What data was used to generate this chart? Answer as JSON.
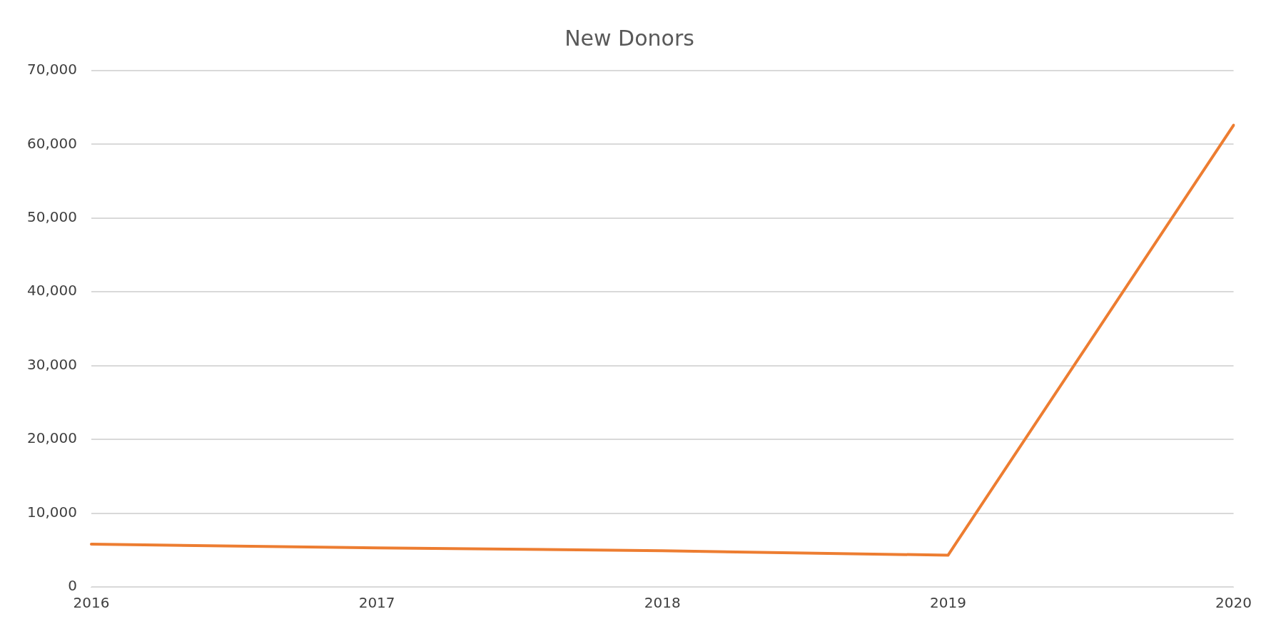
{
  "chart_data": {
    "type": "line",
    "title": "New Donors",
    "categories": [
      "2016",
      "2017",
      "2018",
      "2019",
      "2020"
    ],
    "series": [
      {
        "color": "#ed7d31",
        "values": [
          5800,
          5300,
          4900,
          4300,
          62600
        ]
      }
    ],
    "ylim": [
      0,
      70000
    ],
    "yticks": [
      {
        "value": 0,
        "label": "0"
      },
      {
        "value": 10000,
        "label": "10,000"
      },
      {
        "value": 20000,
        "label": "20,000"
      },
      {
        "value": 30000,
        "label": "30,000"
      },
      {
        "value": 40000,
        "label": "40,000"
      },
      {
        "value": 50000,
        "label": "50,000"
      },
      {
        "value": 60000,
        "label": "60,000"
      },
      {
        "value": 70000,
        "label": "70,000"
      }
    ],
    "grid": "y",
    "legend": false,
    "marker": "none",
    "line_style": "solid"
  }
}
